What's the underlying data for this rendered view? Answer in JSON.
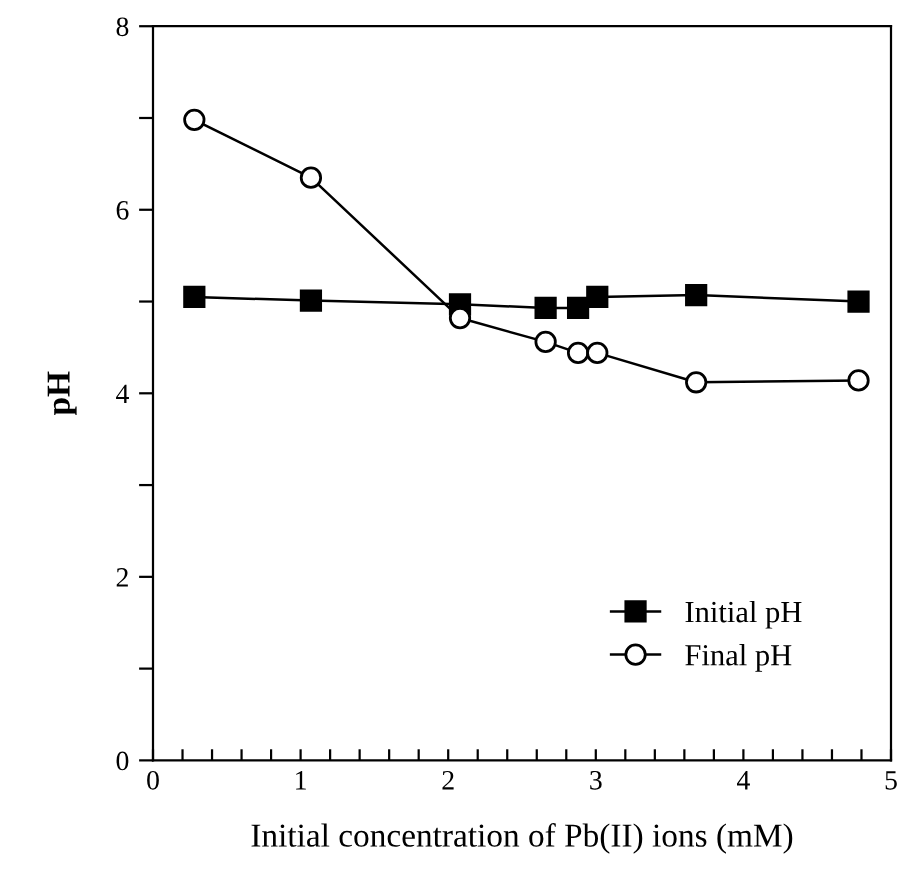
{
  "chart_data": {
    "type": "line",
    "xlabel": "Initial concentration of Pb(II) ions (mM)",
    "ylabel": "pH",
    "x": [
      0.28,
      1.07,
      2.08,
      2.66,
      2.88,
      3.01,
      3.68,
      4.78
    ],
    "series": [
      {
        "name": "Initial pH",
        "color": "#000000",
        "marker": "square",
        "values": [
          5.05,
          5.01,
          4.97,
          4.93,
          4.93,
          5.05,
          5.07,
          5.0
        ]
      },
      {
        "name": "Final pH",
        "color": "#000000",
        "marker": "circle",
        "values": [
          6.98,
          6.35,
          4.82,
          4.56,
          4.44,
          4.44,
          4.12,
          4.14
        ]
      }
    ],
    "xlim": [
      0,
      5
    ],
    "ylim": [
      0,
      8
    ],
    "xticks": [
      0,
      {
        "value": 0.2,
        "label": null
      },
      {
        "value": 0.4,
        "label": null
      },
      {
        "value": 0.6,
        "label": null
      },
      {
        "value": 0.8,
        "label": null
      },
      1,
      {
        "value": 1.2,
        "label": null
      },
      {
        "value": 1.4,
        "label": null
      },
      {
        "value": 1.6,
        "label": null
      },
      {
        "value": 1.8,
        "label": null
      },
      2,
      {
        "value": 2.2,
        "label": null
      },
      {
        "value": 2.4,
        "label": null
      },
      {
        "value": 2.6,
        "label": null
      },
      {
        "value": 2.8,
        "label": null
      },
      3,
      {
        "value": 3.2,
        "label": null
      },
      {
        "value": 3.4,
        "label": null
      },
      {
        "value": 3.6,
        "label": null
      },
      {
        "value": 3.8,
        "label": null
      },
      4,
      {
        "value": 4.2,
        "label": null
      },
      {
        "value": 4.4,
        "label": null
      },
      {
        "value": 4.6,
        "label": null
      },
      {
        "value": 4.8,
        "label": null
      },
      5
    ],
    "yticks": [
      0,
      {
        "value": 1,
        "label": null
      },
      2,
      {
        "value": 3,
        "label": null
      },
      4,
      {
        "value": 5,
        "label": null
      },
      6,
      {
        "value": 7,
        "label": null
      },
      8
    ],
    "grid": false,
    "legend": "bottom right",
    "line_style": "solid"
  }
}
